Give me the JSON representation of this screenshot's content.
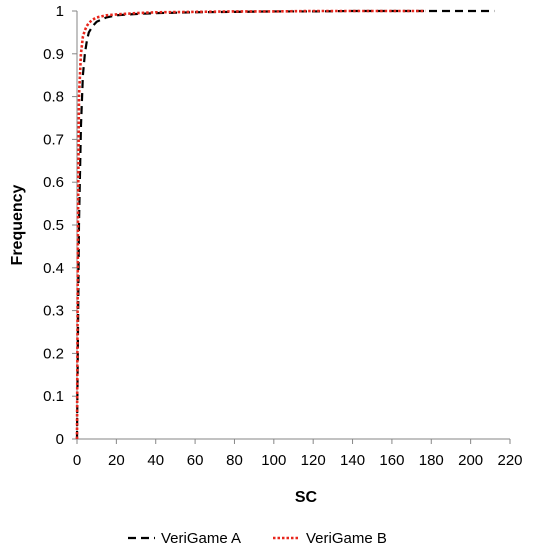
{
  "chart_data": {
    "type": "line",
    "title": "",
    "xlabel": "SC",
    "ylabel": "Frequency",
    "xlim": [
      0,
      220
    ],
    "ylim": [
      0,
      1
    ],
    "xticks": [
      0,
      20,
      40,
      60,
      80,
      100,
      120,
      140,
      160,
      180,
      200,
      220
    ],
    "yticks": [
      0,
      0.1,
      0.2,
      0.3,
      0.4,
      0.5,
      0.6,
      0.7,
      0.8,
      0.9,
      1
    ],
    "grid": false,
    "legend_position": "bottom",
    "series": [
      {
        "name": "VeriGame A",
        "color": "#000000",
        "style": "dashed",
        "x": [
          0,
          1,
          2,
          3,
          4,
          5,
          6,
          8,
          10,
          15,
          20,
          30,
          40,
          60,
          80,
          100,
          120,
          140,
          160,
          180,
          200,
          212
        ],
        "y": [
          0,
          0.5,
          0.73,
          0.85,
          0.9,
          0.93,
          0.95,
          0.965,
          0.975,
          0.985,
          0.99,
          0.993,
          0.995,
          0.997,
          0.998,
          0.999,
          0.999,
          1,
          1,
          1,
          1,
          1
        ]
      },
      {
        "name": "VeriGame B",
        "color": "#e8261c",
        "style": "dotted",
        "x": [
          0,
          0.5,
          1,
          2,
          3,
          4,
          5,
          6,
          8,
          10,
          15,
          20,
          30,
          40,
          60,
          80,
          100,
          120,
          140,
          160,
          177
        ],
        "y": [
          0,
          0.5,
          0.8,
          0.9,
          0.94,
          0.955,
          0.965,
          0.972,
          0.98,
          0.985,
          0.99,
          0.992,
          0.995,
          0.997,
          0.998,
          0.999,
          0.999,
          1,
          1,
          1,
          1
        ]
      }
    ]
  }
}
